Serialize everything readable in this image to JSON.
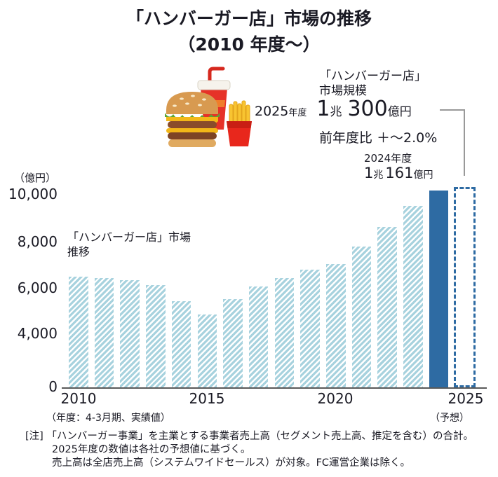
{
  "title": {
    "line1": "「ハンバーガー店」市場の推移",
    "line2": "（2010 年度〜）"
  },
  "callout_2025": {
    "heading_line1": "「ハンバーガー店」",
    "heading_line2": "市場規模",
    "year": "2025",
    "year_suffix": "年度",
    "value_int": "1",
    "unit_cho": "兆",
    "value_num": "300",
    "unit_oku": "億円",
    "yoy": "前年度比 ＋〜2.0%"
  },
  "callout_2024": {
    "year": "2024年度",
    "value_int": "1",
    "unit_cho": "兆",
    "value_num": "161",
    "unit_oku": "億円"
  },
  "chart": {
    "unit_label": "（億円）",
    "series_label_line1": "「ハンバーガー店」市場",
    "series_label_line2": "推移",
    "y_ticks": [
      "10,000",
      "8,000",
      "6,000",
      "4,000",
      "0"
    ],
    "x_ticks": [
      "2010",
      "2015",
      "2020",
      "2025"
    ],
    "x_note_left": "（年度：4-3月期、実績値）",
    "x_note_right": "（予想）"
  },
  "chart_data": {
    "type": "bar",
    "title": "「ハンバーガー店」市場の推移（2010年度〜）",
    "ylabel": "億円",
    "categories": [
      2010,
      2011,
      2012,
      2013,
      2014,
      2015,
      2016,
      2017,
      2018,
      2019,
      2020,
      2021,
      2022,
      2023,
      2024,
      2025
    ],
    "values": [
      6450,
      6400,
      6300,
      6100,
      5400,
      4850,
      5500,
      6050,
      6400,
      6750,
      7000,
      7750,
      8600,
      9500,
      10161,
      10300
    ],
    "series": [
      {
        "name": "「ハンバーガー店」市場推移",
        "values": [
          6450,
          6400,
          6300,
          6100,
          5400,
          4850,
          5500,
          6050,
          6400,
          6750,
          7000,
          7750,
          8600,
          9500,
          10161,
          10300
        ]
      }
    ],
    "ytick_values": [
      0,
      4000,
      6000,
      8000,
      10000
    ],
    "ylim": [
      0,
      10600
    ],
    "grid": false,
    "legend": "none",
    "y_axis_note": "non-linear axis: 0–4,000 segment compressed (no 2,000 tick)",
    "highlight": {
      "category": 2024,
      "value": 10161,
      "label": "1兆161億円",
      "style": "solid"
    },
    "forecast": {
      "category": 2025,
      "value": 10300,
      "label": "1兆300億円",
      "style": "dashed-outline"
    },
    "colors": {
      "hatched_bar": "#a7d2de",
      "solid_bar": "#2e6ba3",
      "forecast_outline": "#2e6ba3",
      "axis_line": "#595959",
      "connector": "#999999"
    }
  },
  "footnotes": {
    "line1": "[注] 「ハンバーガー事業」を主業とする事業者売上高（セグメント売上高、推定を含む）の合計。",
    "line2": "2025年度の数値は各社の予想値に基づく。",
    "line3": "売上高は全店売上高（システムワイドセールス）が対象。FC運営企業は除く。"
  }
}
